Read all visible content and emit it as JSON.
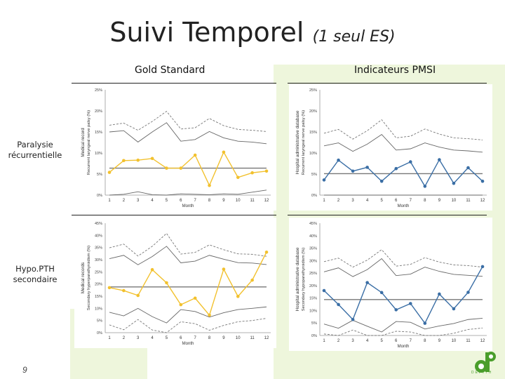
{
  "slide": {
    "title_main": "Suivi Temporel ",
    "title_sub": "(1 seul ES)",
    "col_left": "Gold Standard",
    "col_right": "Indicateurs PMSI",
    "row1_label": "Paralysie récurrentielle",
    "row2_label": "Hypo.PTH secondaire",
    "page_number": "9",
    "logo_text": "DEPITH",
    "accent_gold": "#f2c12e",
    "accent_blue": "#3a6ea5",
    "bg_green": "#eef6dc",
    "logo_green": "#4a9e2b"
  },
  "chart_data": [
    {
      "id": "c1",
      "type": "line",
      "color": "#f2c12e",
      "ylabel1": "Medical record",
      "ylabel2": "Recurrent laryngeal nerve palsy (%)",
      "xlabel": "Month",
      "ticks": [
        "0%",
        "5%",
        "10%",
        "15%",
        "20%",
        "25%"
      ],
      "ylim": [
        0,
        25
      ],
      "categories": [
        "1",
        "2",
        "3",
        "4",
        "5",
        "6",
        "7",
        "8",
        "9",
        "10",
        "11",
        "12"
      ],
      "series": [
        {
          "name": "rate",
          "values": [
            5.4,
            8.2,
            8.3,
            8.7,
            6.4,
            6.4,
            9.5,
            2.3,
            10.2,
            4.2,
            5.3,
            5.7
          ]
        },
        {
          "name": "mean",
          "values": [
            6.4,
            6.4,
            6.4,
            6.4,
            6.4,
            6.4,
            6.4,
            6.4,
            6.4,
            6.4,
            6.4,
            6.4
          ]
        },
        {
          "name": "upper_limit_95",
          "values": [
            15.0,
            15.3,
            12.6,
            15.0,
            17.2,
            12.8,
            13.2,
            15.1,
            13.6,
            12.8,
            12.6,
            12.2
          ]
        },
        {
          "name": "upper_limit_99",
          "values": [
            16.6,
            17.1,
            15.4,
            17.5,
            19.9,
            15.7,
            16.0,
            18.2,
            16.5,
            15.6,
            15.4,
            15.1
          ]
        },
        {
          "name": "lower_limit",
          "values": [
            0.0,
            0.2,
            0.8,
            0.1,
            0.0,
            0.3,
            0.2,
            0.1,
            0.3,
            0.2,
            0.7,
            1.2
          ]
        }
      ]
    },
    {
      "id": "c2",
      "type": "line",
      "color": "#3a6ea5",
      "ylabel1": "Hospital administrative database",
      "ylabel2": "Recurrent laryngeal nerve palsy (%)",
      "xlabel": "Month",
      "ticks": [
        "0%",
        "5%",
        "10%",
        "15%",
        "20%",
        "25%"
      ],
      "ylim": [
        0,
        25
      ],
      "categories": [
        "1",
        "2",
        "3",
        "4",
        "5",
        "6",
        "7",
        "8",
        "9",
        "10",
        "11",
        "12"
      ],
      "series": [
        {
          "name": "rate",
          "values": [
            3.6,
            8.3,
            5.7,
            6.6,
            3.3,
            6.3,
            7.9,
            2.1,
            8.4,
            2.8,
            6.5,
            3.3
          ]
        },
        {
          "name": "mean",
          "values": [
            5.1,
            5.1,
            5.1,
            5.1,
            5.1,
            5.1,
            5.1,
            5.1,
            5.1,
            5.1,
            5.1,
            5.1
          ]
        },
        {
          "name": "upper_limit_95",
          "values": [
            11.7,
            12.4,
            10.4,
            12.1,
            14.4,
            10.7,
            11.0,
            12.4,
            11.4,
            10.7,
            10.5,
            10.2
          ]
        },
        {
          "name": "upper_limit_99",
          "values": [
            14.7,
            15.6,
            13.3,
            15.3,
            17.9,
            13.6,
            14.0,
            15.7,
            14.5,
            13.6,
            13.4,
            13.1
          ]
        },
        {
          "name": "lower_limit",
          "values": [
            0.0,
            0.0,
            0.0,
            0.0,
            0.0,
            0.0,
            0.0,
            0.0,
            0.0,
            0.0,
            0.0,
            0.0
          ]
        }
      ]
    },
    {
      "id": "c3",
      "type": "line",
      "color": "#f2c12e",
      "ylabel1": "Medical records",
      "ylabel2": "Secondary hyperparathyroidism (%)",
      "xlabel": "Month",
      "ticks": [
        "0%",
        "5%",
        "10%",
        "15%",
        "20%",
        "25%",
        "30%",
        "35%",
        "40%",
        "45%"
      ],
      "ylim": [
        0,
        45
      ],
      "categories": [
        "1",
        "2",
        "3",
        "4",
        "5",
        "6",
        "7",
        "8",
        "9",
        "10",
        "11",
        "12"
      ],
      "series": [
        {
          "name": "rate",
          "values": [
            18.5,
            17.3,
            15.3,
            25.9,
            20.5,
            11.5,
            14.2,
            7.2,
            26.1,
            14.9,
            21.6,
            33.1
          ]
        },
        {
          "name": "mean",
          "values": [
            18.8,
            18.8,
            18.8,
            18.8,
            18.8,
            18.8,
            18.8,
            18.8,
            18.8,
            18.8,
            18.8,
            18.8
          ]
        },
        {
          "name": "upper_limit_95",
          "values": [
            30.4,
            31.8,
            27.9,
            31.3,
            35.5,
            28.7,
            29.4,
            31.8,
            30.2,
            28.8,
            28.6,
            28.0
          ]
        },
        {
          "name": "upper_limit_99",
          "values": [
            34.9,
            36.4,
            31.5,
            35.5,
            40.8,
            32.3,
            33.0,
            36.1,
            34.1,
            32.4,
            32.2,
            31.4
          ]
        },
        {
          "name": "lower_limit_95",
          "values": [
            8.4,
            6.9,
            10.0,
            6.6,
            4.0,
            9.5,
            8.7,
            6.4,
            8.2,
            9.5,
            10.0,
            10.6
          ]
        },
        {
          "name": "lower_limit_99",
          "values": [
            3.2,
            1.2,
            5.4,
            1.1,
            0.0,
            4.5,
            3.7,
            1.0,
            3.0,
            4.5,
            5.0,
            5.9
          ]
        }
      ]
    },
    {
      "id": "c4",
      "type": "line",
      "color": "#3a6ea5",
      "ylabel1": "Hospital administrative database",
      "ylabel2": "Secondary hypoparathyroidism (%)",
      "xlabel": "Month",
      "ticks": [
        "0%",
        "5%",
        "10%",
        "15%",
        "20%",
        "25%",
        "30%",
        "35%",
        "40%",
        "45%"
      ],
      "ylim": [
        0,
        45
      ],
      "categories": [
        "1",
        "2",
        "3",
        "4",
        "5",
        "6",
        "7",
        "8",
        "9",
        "10",
        "11",
        "12"
      ],
      "series": [
        {
          "name": "rate",
          "values": [
            18.0,
            12.4,
            6.4,
            21.2,
            17.2,
            10.3,
            12.8,
            4.9,
            16.6,
            10.7,
            17.3,
            27.6
          ]
        },
        {
          "name": "mean",
          "values": [
            14.4,
            14.4,
            14.4,
            14.4,
            14.4,
            14.4,
            14.4,
            14.4,
            14.4,
            14.4,
            14.4,
            14.4
          ]
        },
        {
          "name": "upper_limit_95",
          "values": [
            25.5,
            27.1,
            23.6,
            26.4,
            30.8,
            24.0,
            24.6,
            27.4,
            25.7,
            24.5,
            24.1,
            23.7
          ]
        },
        {
          "name": "upper_limit_99",
          "values": [
            29.6,
            31.0,
            27.4,
            30.2,
            34.4,
            27.8,
            28.5,
            31.2,
            29.4,
            28.3,
            28.0,
            27.4
          ]
        },
        {
          "name": "lower_limit_95",
          "values": [
            4.6,
            2.9,
            6.1,
            3.7,
            1.4,
            5.6,
            5.3,
            2.6,
            3.8,
            4.8,
            6.4,
            6.9
          ]
        },
        {
          "name": "lower_limit_99",
          "values": [
            0.6,
            0.0,
            2.2,
            0.0,
            0.0,
            1.7,
            1.4,
            0.0,
            0.0,
            0.9,
            2.4,
            3.0
          ]
        }
      ]
    }
  ]
}
